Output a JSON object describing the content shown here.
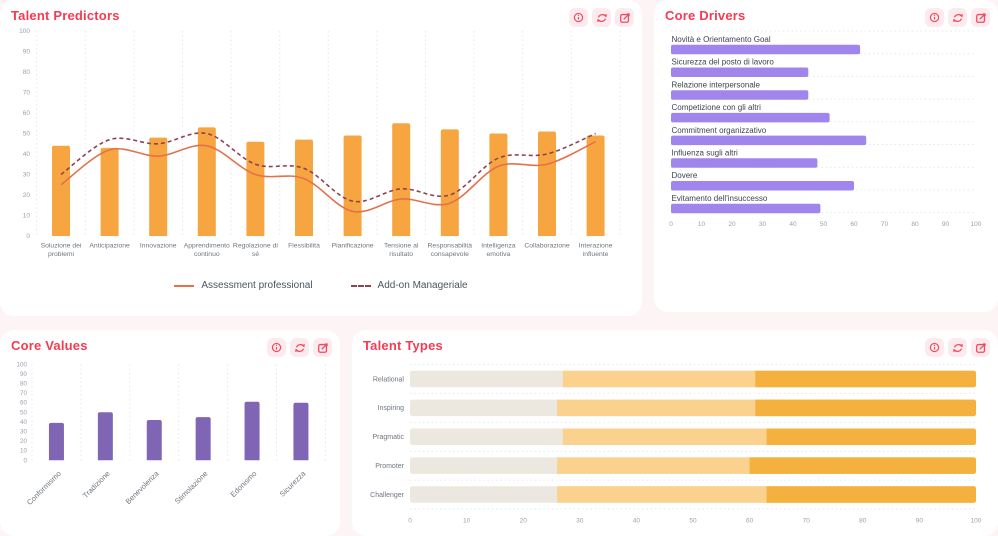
{
  "colors": {
    "page_bg": "#fdf4f6",
    "panel_bg": "#ffffff",
    "title_red": "#f43b52",
    "icon_btn_bg": "#fdeaee",
    "icon_red": "#ef4b5d",
    "grid": "#e4e7eb",
    "axis_text": "#9aa1ac",
    "category_text": "#6f7680",
    "driver_label_text": "#3d444e",
    "legend_text": "#4a5560",
    "bar_orange": "#f7a540",
    "line_solid": "#e4714d",
    "line_dashed": "#8f4253",
    "bar_purple_light": "#a085ec",
    "bar_purple_dark": "#8165b5",
    "stack_beige": "#ece7df",
    "stack_light_orange": "#fad28e",
    "stack_orange": "#f4b13e"
  },
  "panel_action_icons": [
    "info-icon",
    "refresh-icon",
    "edit-icon"
  ],
  "chart_data": [
    {
      "type": "bar",
      "title": "Talent Predictors",
      "categories": [
        "Soluzione dei problemi",
        "Anticipazione",
        "Innovazione",
        "Apprendimento continuo",
        "Regolazione di sé",
        "Flessibilità",
        "Pianificazione",
        "Tensione al risultato",
        "Responsabilità consapevole",
        "Intelligenza emotiva",
        "Collaborazione",
        "Interazione influente"
      ],
      "bar_values": [
        44,
        43,
        48,
        53,
        46,
        47,
        49,
        55,
        52,
        50,
        51,
        49
      ],
      "series": [
        {
          "name": "Assessment professional",
          "style": "solid",
          "values": [
            25,
            42,
            39,
            44,
            30,
            28,
            12,
            18,
            16,
            34,
            35,
            46
          ]
        },
        {
          "name": "Add-on Manageriale",
          "style": "dashed",
          "values": [
            30,
            47,
            45,
            50,
            35,
            33,
            17,
            23,
            20,
            38,
            40,
            50
          ]
        }
      ],
      "ylim": [
        0,
        100
      ],
      "ytick_step": 10,
      "legend_position": "bottom",
      "grid": "vertical-dotted"
    },
    {
      "type": "bar",
      "orientation": "horizontal",
      "title": "Core Drivers",
      "categories": [
        "Novità e Orientamento Goal",
        "Sicurezza del posto di lavoro",
        "Relazione interpersonale",
        "Competizione con gli altri",
        "Commitment organizzativo",
        "Influenza sugli altri",
        "Dovere",
        "Evitamento dell'insuccesso"
      ],
      "values": [
        62,
        45,
        45,
        52,
        64,
        48,
        60,
        49
      ],
      "xlim": [
        0,
        100
      ],
      "xtick_step": 10,
      "grid": "row-separators-dotted"
    },
    {
      "type": "bar",
      "title": "Core Values",
      "categories": [
        "Conformismo",
        "Tradizione",
        "Benevolenza",
        "Stimolazione",
        "Edonismo",
        "Sicurezza"
      ],
      "values": [
        39,
        50,
        42,
        45,
        61,
        60
      ],
      "ylim": [
        0,
        100
      ],
      "ytick_step": 10,
      "grid": "vertical-dotted"
    },
    {
      "type": "bar",
      "orientation": "horizontal",
      "stacked": true,
      "title": "Talent Types",
      "categories": [
        "Relational",
        "Inspiring",
        "Pragmatic",
        "Promoter",
        "Challenger"
      ],
      "series": [
        {
          "name": "segment-beige",
          "values": [
            27,
            26,
            27,
            26,
            26
          ]
        },
        {
          "name": "segment-light-orange",
          "values": [
            34,
            35,
            36,
            34,
            37
          ]
        },
        {
          "name": "segment-orange",
          "values": [
            39,
            39,
            37,
            40,
            37
          ]
        }
      ],
      "xlim": [
        0,
        100
      ],
      "xtick_step": 10,
      "grid": "row-separators-dotted"
    }
  ]
}
